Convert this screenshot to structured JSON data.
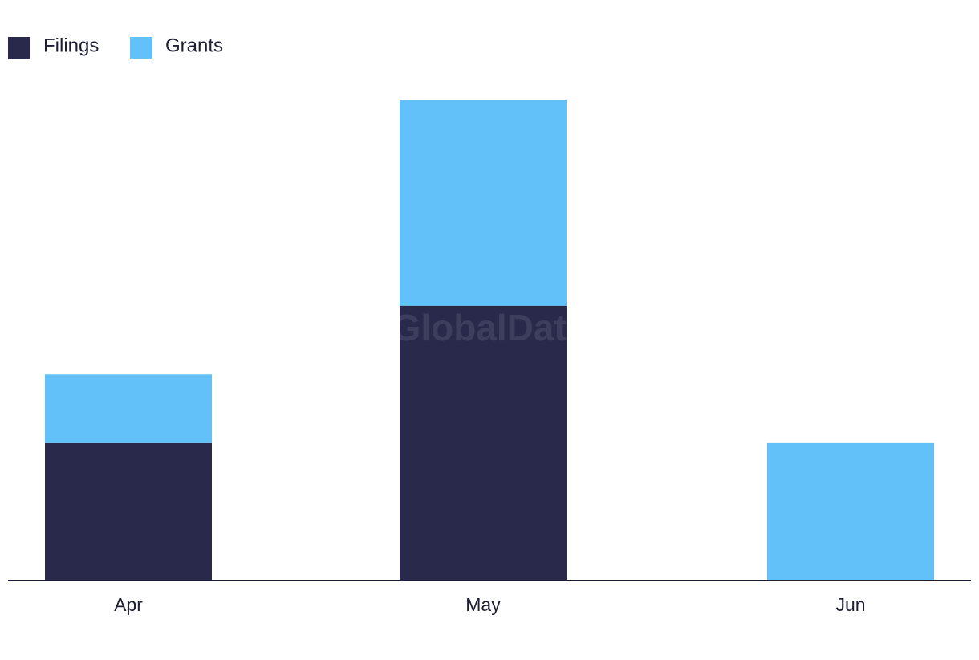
{
  "chart_data": {
    "type": "stacked_bar",
    "watermark": "GlobalData",
    "categories": [
      "Apr",
      "May",
      "Jun"
    ],
    "series": [
      {
        "name": "Filings",
        "color": "#28294b",
        "values": [
          2,
          4,
          0
        ]
      },
      {
        "name": "Grants",
        "color": "#62c1f9",
        "values": [
          1,
          3,
          2
        ]
      }
    ]
  }
}
